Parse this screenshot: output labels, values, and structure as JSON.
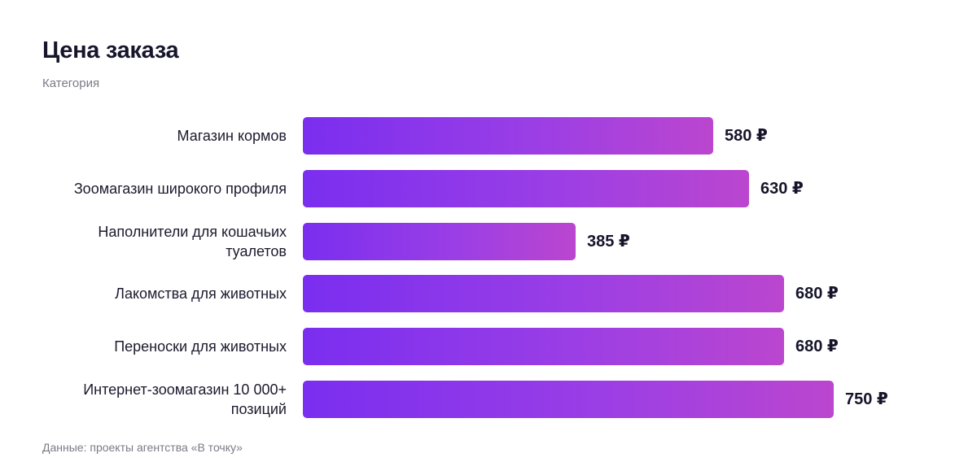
{
  "title": "Цена заказа",
  "subtitle": "Категория",
  "source": "Данные: проекты агентства «В точку»",
  "colors": {
    "bar_start": "#7a2eef",
    "bar_end": "#bb46cf",
    "text": "#16142a",
    "muted": "#7b7a86"
  },
  "chart_data": {
    "type": "bar",
    "orientation": "horizontal",
    "title": "Цена заказа",
    "subtitle": "Категория",
    "unit": "₽",
    "categories": [
      "Магазин кормов",
      "Зоомагазин широкого профиля",
      "Наполнители для кошачьих туалетов",
      "Лакомства для животных",
      "Переноски для животных",
      "Интернет-зоомагазин 10 000+ позиций"
    ],
    "values": [
      580,
      630,
      385,
      680,
      680,
      750
    ],
    "value_labels": [
      "580 ₽",
      "630 ₽",
      "385 ₽",
      "680 ₽",
      "680 ₽",
      "750 ₽"
    ],
    "grid": false,
    "legend": "none"
  }
}
